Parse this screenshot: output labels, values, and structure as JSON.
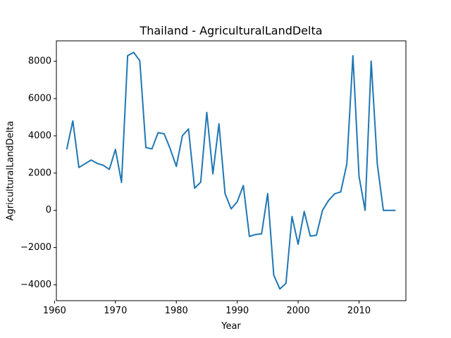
{
  "chart_data": {
    "type": "line",
    "title": "Thailand - AgriculturalLandDelta",
    "xlabel": "Year",
    "ylabel": "AgriculturalLandDelta",
    "xlim": [
      1960.3,
      2017.7
    ],
    "ylim": [
      -4850,
      9100
    ],
    "xticks": [
      1960,
      1970,
      1980,
      1990,
      2000,
      2010
    ],
    "yticks": [
      -4000,
      -2000,
      0,
      2000,
      4000,
      6000,
      8000
    ],
    "grid": false,
    "legend": "none",
    "series": [
      {
        "color": "#1f77b4",
        "x": [
          1962,
          1963,
          1964,
          1965,
          1966,
          1967,
          1968,
          1969,
          1970,
          1971,
          1972,
          1973,
          1974,
          1975,
          1976,
          1977,
          1978,
          1979,
          1980,
          1981,
          1982,
          1983,
          1984,
          1985,
          1986,
          1987,
          1988,
          1989,
          1990,
          1991,
          1992,
          1993,
          1994,
          1995,
          1996,
          1997,
          1998,
          1999,
          2000,
          2001,
          2002,
          2003,
          2004,
          2005,
          2006,
          2007,
          2008,
          2009,
          2010,
          2011,
          2012,
          2013,
          2014,
          2015,
          2016
        ],
        "y": [
          3270,
          4800,
          2300,
          2500,
          2700,
          2520,
          2420,
          2200,
          3270,
          1500,
          8300,
          8480,
          8030,
          3370,
          3300,
          4170,
          4110,
          3300,
          2360,
          4010,
          4370,
          1190,
          1510,
          5260,
          1960,
          4650,
          900,
          80,
          460,
          1330,
          -1400,
          -1300,
          -1260,
          900,
          -3480,
          -4220,
          -3920,
          -330,
          -1820,
          -60,
          -1380,
          -1340,
          0,
          530,
          890,
          990,
          2490,
          8300,
          1830,
          0,
          8020,
          2500,
          0,
          0,
          0
        ]
      }
    ]
  }
}
